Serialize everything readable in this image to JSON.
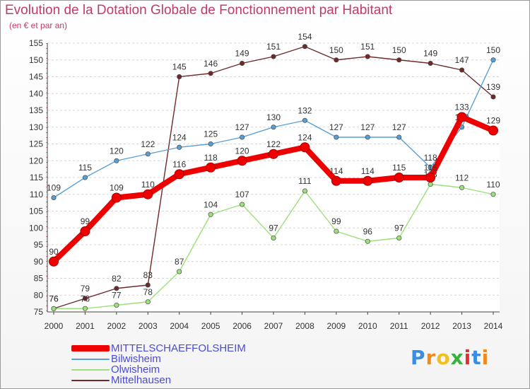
{
  "chart_data": {
    "type": "line",
    "title": "Evolution de la Dotation Globale de Fonctionnement par Habitant",
    "subtitle": "(en € et par an)",
    "xlabel": "",
    "ylabel": "",
    "x": [
      "2000",
      "2001",
      "2002",
      "2003",
      "2004",
      "2005",
      "2006",
      "2007",
      "2008",
      "2009",
      "2010",
      "2011",
      "2012",
      "2013",
      "2014"
    ],
    "ylim": [
      75,
      155
    ],
    "yticks": [
      75,
      80,
      85,
      90,
      95,
      100,
      105,
      110,
      115,
      120,
      125,
      130,
      135,
      140,
      145,
      150,
      155
    ],
    "grid": true,
    "legend_position": "bottom-left",
    "series": [
      {
        "name": "Mittelhausen",
        "color": "#6e2a2a",
        "values": [
          76,
          79,
          82,
          83,
          145,
          146,
          149,
          151,
          154,
          150,
          151,
          150,
          149,
          147,
          139
        ]
      },
      {
        "name": "Olwisheim",
        "color": "#9be07a",
        "values": [
          76,
          76,
          77,
          78,
          87,
          104,
          107,
          97,
          111,
          99,
          96,
          97,
          113,
          112,
          110
        ]
      },
      {
        "name": "Bilwisheim",
        "color": "#5a9fd4",
        "values": [
          109,
          115,
          120,
          122,
          124,
          125,
          127,
          130,
          132,
          127,
          127,
          127,
          118,
          130,
          150
        ]
      },
      {
        "name": "MITTELSCHAEFFOLSHEIM",
        "color": "#ee0000",
        "values": [
          90,
          99,
          109,
          110,
          116,
          118,
          120,
          122,
          124,
          114,
          114,
          115,
          115,
          133,
          129
        ]
      }
    ],
    "legend_order": [
      "MITTELSCHAEFFOLSHEIM",
      "Bilwisheim",
      "Olwisheim",
      "Mittelhausen"
    ]
  },
  "logo": {
    "text": "Proxiti",
    "letters": [
      "P",
      "r",
      "o",
      "x",
      "i",
      "t",
      "i"
    ],
    "colors": [
      "#3a8de0",
      "#f08a1a",
      "#f0c020",
      "#3ab040",
      "#e03030",
      "#3a8de0",
      "#f08a1a"
    ]
  }
}
